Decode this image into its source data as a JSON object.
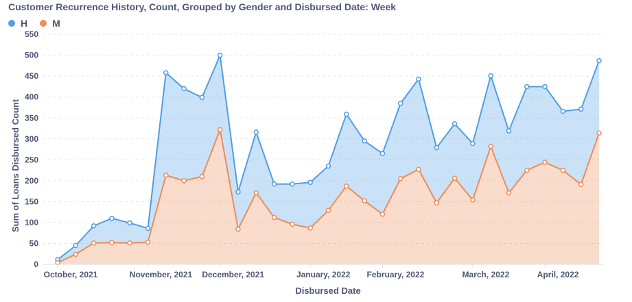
{
  "chart_data": {
    "type": "area",
    "title": "Customer Recurrence History, Count, Grouped by Gender and Disbursed Date: Week",
    "xlabel": "Disbursed Date",
    "ylabel": "Sum of Loans Disbursed Count",
    "ylim": [
      0,
      560
    ],
    "yticks": [
      0,
      50,
      100,
      150,
      200,
      250,
      300,
      350,
      400,
      450,
      500,
      550
    ],
    "xtick_labels": [
      "October, 2021",
      "November, 2021",
      "December, 2021",
      "January, 2022",
      "February, 2022",
      "March, 2022",
      "April, 2022"
    ],
    "stacked": true,
    "grid": true,
    "legend_position": "top-left",
    "series": [
      {
        "name": "H",
        "color": "#509ee3",
        "values": [
          7,
          21,
          41,
          58,
          48,
          33,
          245,
          220,
          189,
          178,
          89,
          145,
          80,
          96,
          109,
          106,
          172,
          143,
          145,
          180,
          216,
          132,
          130,
          135,
          169,
          148,
          200,
          181,
          141,
          180,
          173
        ]
      },
      {
        "name": "M",
        "color": "#ef8c59",
        "values": [
          4,
          24,
          51,
          52,
          51,
          53,
          213,
          200,
          210,
          322,
          84,
          171,
          112,
          96,
          87,
          129,
          187,
          152,
          120,
          205,
          227,
          147,
          206,
          154,
          282,
          171,
          225,
          244,
          225,
          191,
          314
        ]
      }
    ]
  }
}
